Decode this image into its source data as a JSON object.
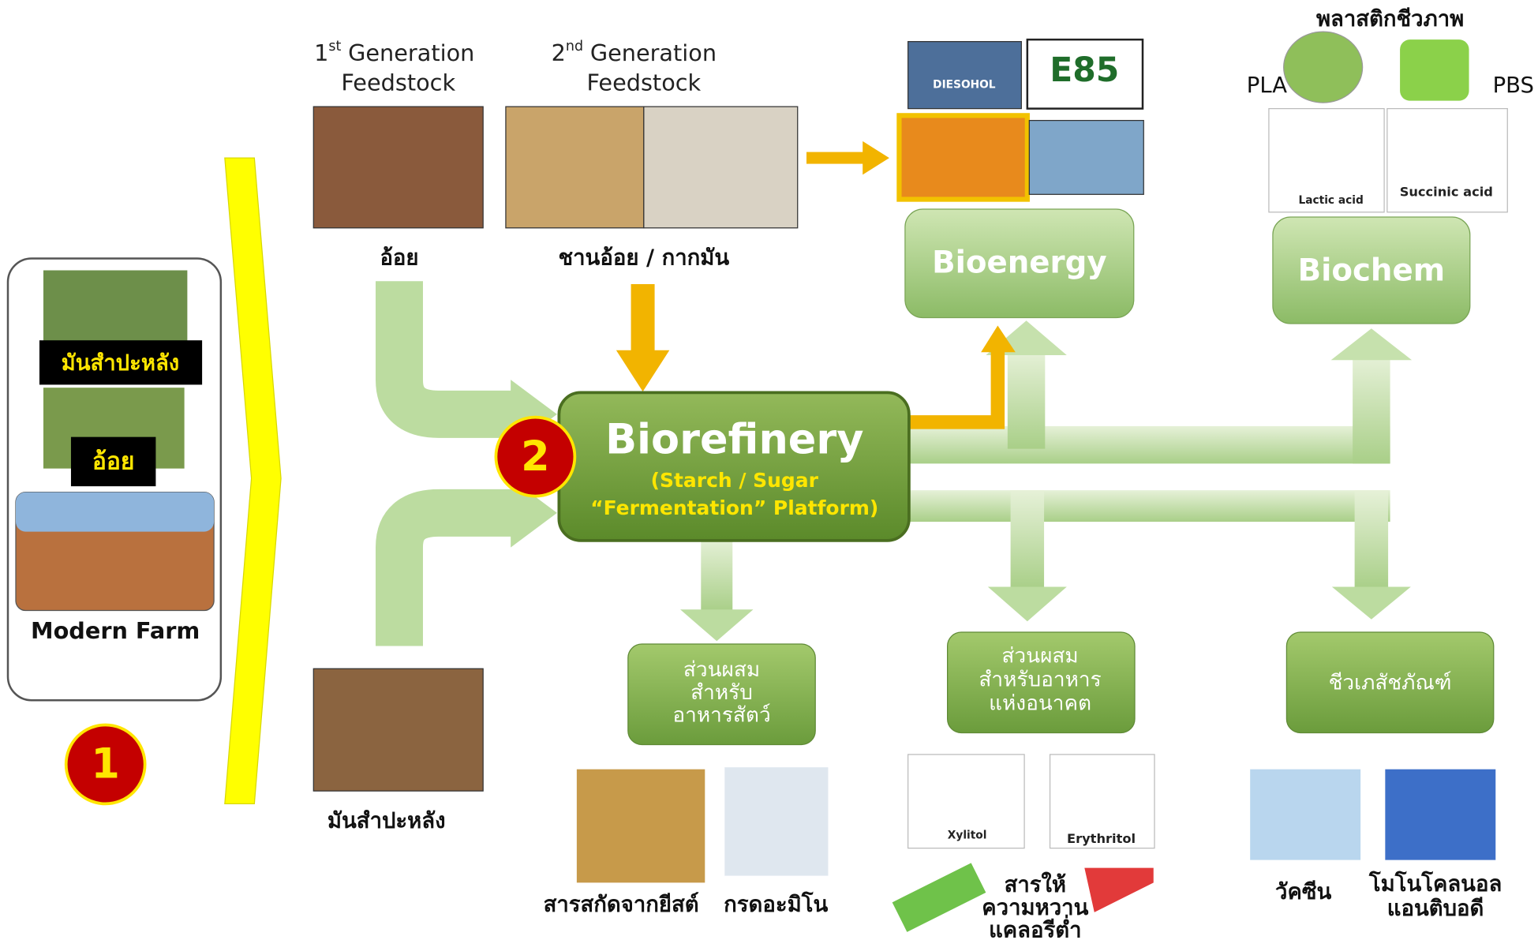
{
  "farm": {
    "items": [
      "มันสำปะหลัง",
      "อ้อย"
    ],
    "label": "Modern Farm",
    "badge": "1"
  },
  "feedstocks": [
    {
      "number": "1",
      "suffix": "st",
      "title": "Generation",
      "subtitle": "Feedstock",
      "caption": "อ้อย"
    },
    {
      "number": "2",
      "suffix": "nd",
      "title": "Generation",
      "subtitle": "Feedstock",
      "caption": "ชานอ้อย / กากมัน"
    }
  ],
  "cassava_caption": "มันสำปะหลัง",
  "biorefinery": {
    "badge": "2",
    "title": "Biorefinery",
    "subtitle": [
      "(Starch / Sugar",
      "“Fermentation” Platform)"
    ]
  },
  "bioenergy": {
    "title": "Bioenergy",
    "image_labels": [
      "DIESOHOL",
      "E85"
    ]
  },
  "biochem": {
    "title": "Biochem",
    "heading": "พลาสติกชีวภาพ",
    "plastics": [
      "PLA",
      "PBS"
    ],
    "acids": [
      "Lactic acid",
      "Succinic acid"
    ]
  },
  "products": [
    {
      "lines": [
        "ส่วนผสม",
        "สำหรับ",
        "อาหารสัตว์"
      ],
      "examples": [
        [
          "สารสกัดจากยีสต์"
        ],
        [
          "กรดอะมิโน"
        ]
      ]
    },
    {
      "lines": [
        "ส่วนผสม",
        "สำหรับอาหาร",
        "แห่งอนาคต"
      ],
      "examples": [
        [
          "Xylitol"
        ],
        [
          "Erythritol"
        ],
        [
          "สารให้",
          "ความหวาน",
          "แคลอรีต่ำ"
        ]
      ]
    },
    {
      "lines": [
        "ชีวเภสัชภัณฑ์"
      ],
      "examples": [
        [
          "วัคซีน"
        ],
        [
          "โมโนโคลนอล",
          "แอนติบอดี"
        ]
      ]
    }
  ]
}
